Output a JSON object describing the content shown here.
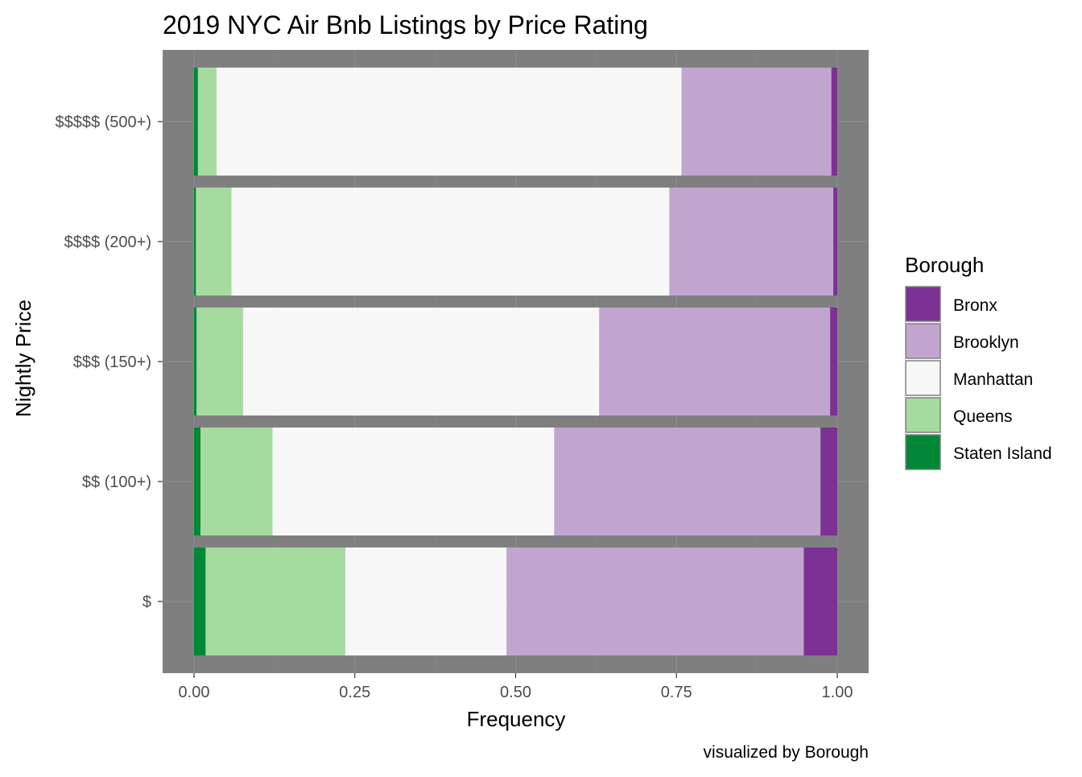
{
  "chart_data": {
    "type": "bar",
    "orientation": "horizontal",
    "stacked": true,
    "title": "2019 NYC Air Bnb Listings by Price Rating",
    "caption": "visualized by Borough",
    "xlabel": "Frequency",
    "ylabel": "Nightly Price",
    "xlim": [
      0,
      1
    ],
    "xticks": [
      "0.00",
      "0.25",
      "0.50",
      "0.75",
      "1.00"
    ],
    "xtick_values": [
      0,
      0.25,
      0.5,
      0.75,
      1.0
    ],
    "categories": [
      "$$$$$ (500+)",
      "$$$$ (200+)",
      "$$$ (150+)",
      "$$ (100+)",
      "$"
    ],
    "grid": true,
    "legend_title": "Borough",
    "legend_position": "right",
    "series": [
      {
        "name": "Staten Island",
        "color": "#008837",
        "values": [
          0.006,
          0.003,
          0.004,
          0.01,
          0.018
        ]
      },
      {
        "name": "Queens",
        "color": "#a6dba0",
        "values": [
          0.029,
          0.055,
          0.072,
          0.112,
          0.217
        ]
      },
      {
        "name": "Manhattan",
        "color": "#f7f7f7",
        "values": [
          0.723,
          0.681,
          0.554,
          0.438,
          0.251
        ]
      },
      {
        "name": "Brooklyn",
        "color": "#c2a5cf",
        "values": [
          0.233,
          0.255,
          0.359,
          0.414,
          0.462
        ]
      },
      {
        "name": "Bronx",
        "color": "#7b3294",
        "values": [
          0.009,
          0.006,
          0.011,
          0.026,
          0.052
        ]
      }
    ],
    "legend_order": [
      "Bronx",
      "Brooklyn",
      "Manhattan",
      "Queens",
      "Staten Island"
    ],
    "panel_color": "#7f7f7f"
  }
}
